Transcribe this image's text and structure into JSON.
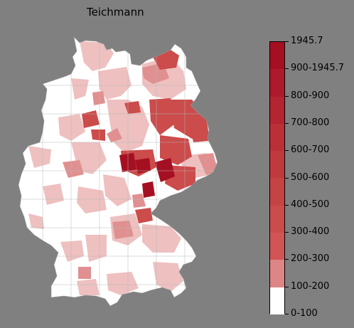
{
  "title": "Teichmann",
  "legend": {
    "tick_labels": [
      "1945.7",
      "900-1945.7",
      "800-900",
      "700-800",
      "600-700",
      "500-600",
      "400-500",
      "300-400",
      "200-300",
      "100-200",
      "0-100"
    ],
    "band_colors": [
      "#a50f22",
      "#ad1a2b",
      "#b42431",
      "#bb2f36",
      "#c0393c",
      "#c64344",
      "#cb4c4b",
      "#d05554",
      "#de8585",
      "#eebfbf",
      "#ffffff"
    ]
  },
  "colors": {
    "background": "#808080",
    "map_white": "#ffffff",
    "light_pink": "#eec0c0",
    "mid_pink": "#e09090",
    "red": "#cc4b4b",
    "dark_red": "#a50f22",
    "border": "#b8b8b8"
  }
}
